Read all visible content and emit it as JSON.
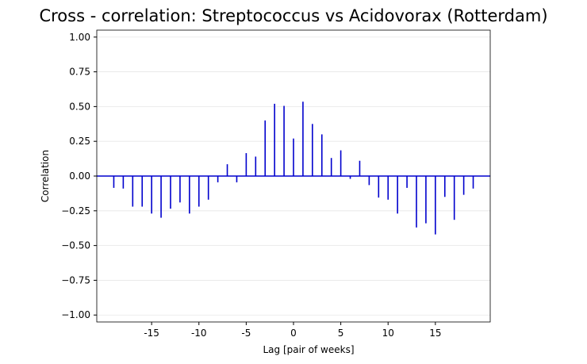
{
  "chart_data": {
    "type": "stem",
    "title": "Cross - correlation: Streptococcus vs Acidovorax (Rotterdam)",
    "x_label": "Lag [pair of weeks]",
    "y_label": "Correlation",
    "color": "#0000cd",
    "x": [
      -19,
      -18,
      -17,
      -16,
      -15,
      -14,
      -13,
      -12,
      -11,
      -10,
      -9,
      -8,
      -7,
      -6,
      -5,
      -4,
      -3,
      -2,
      -1,
      0,
      1,
      2,
      3,
      4,
      5,
      6,
      7,
      8,
      9,
      10,
      11,
      12,
      13,
      14,
      15,
      16,
      17,
      18,
      19
    ],
    "values": [
      -0.085,
      -0.09,
      -0.22,
      -0.22,
      -0.27,
      -0.3,
      -0.235,
      -0.19,
      -0.27,
      -0.22,
      -0.17,
      -0.045,
      0.085,
      -0.045,
      0.165,
      0.14,
      0.4,
      0.52,
      0.505,
      0.27,
      0.535,
      0.375,
      0.3,
      0.13,
      0.185,
      -0.02,
      0.11,
      -0.065,
      -0.155,
      -0.17,
      -0.27,
      -0.085,
      -0.37,
      -0.34,
      -0.42,
      -0.15,
      -0.315,
      -0.135,
      -0.09
    ],
    "xlim": [
      -20.8,
      20.8
    ],
    "ylim": [
      -1.05,
      1.05
    ],
    "xticks": [
      -15,
      -10,
      -5,
      0,
      5,
      10,
      15
    ],
    "yticks": [
      {
        "value": -1,
        "label": "−1.00"
      },
      {
        "value": -0.75,
        "label": "−0.75"
      },
      {
        "value": -0.5,
        "label": "−0.50"
      },
      {
        "value": -0.25,
        "label": "−0.25"
      },
      {
        "value": 0,
        "label": "0.00"
      },
      {
        "value": 0.25,
        "label": "0.25"
      },
      {
        "value": 0.5,
        "label": "0.50"
      },
      {
        "value": 0.75,
        "label": "0.75"
      },
      {
        "value": 1,
        "label": "1.00"
      }
    ],
    "grid": "y"
  }
}
